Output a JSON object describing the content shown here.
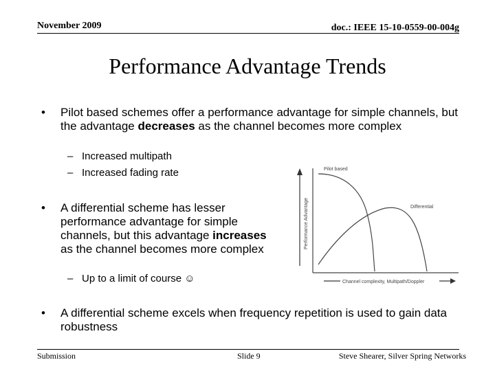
{
  "header": {
    "date": "November 2009",
    "doc_id": "doc.: IEEE 15-10-0559-00-004g"
  },
  "title": "Performance Advantage Trends",
  "bullets": [
    {
      "pre": "Pilot based schemes offer a performance advantage for simple channels, but the advantage ",
      "bold": "decreases",
      "post": " as the channel becomes more complex",
      "sub": [
        "Increased multipath",
        "Increased fading rate"
      ]
    },
    {
      "pre": "A differential scheme has lesser performance advantage for simple channels, but this advantage ",
      "bold": "increases",
      "post": " as the channel becomes more complex",
      "sub": [
        "Up to a limit of course ☺"
      ]
    },
    {
      "text": "A differential scheme excels when frequency repetition is used to gain data robustness"
    }
  ],
  "figure": {
    "y_label": "Performance Advantage",
    "x_label": "Channel complexity, Multipath/Doppler",
    "curve_labels": [
      "Pilot based",
      "Differential"
    ]
  },
  "footer": {
    "left": "Submission",
    "center": "Slide 9",
    "right": "Steve Shearer, Silver Spring Networks"
  }
}
